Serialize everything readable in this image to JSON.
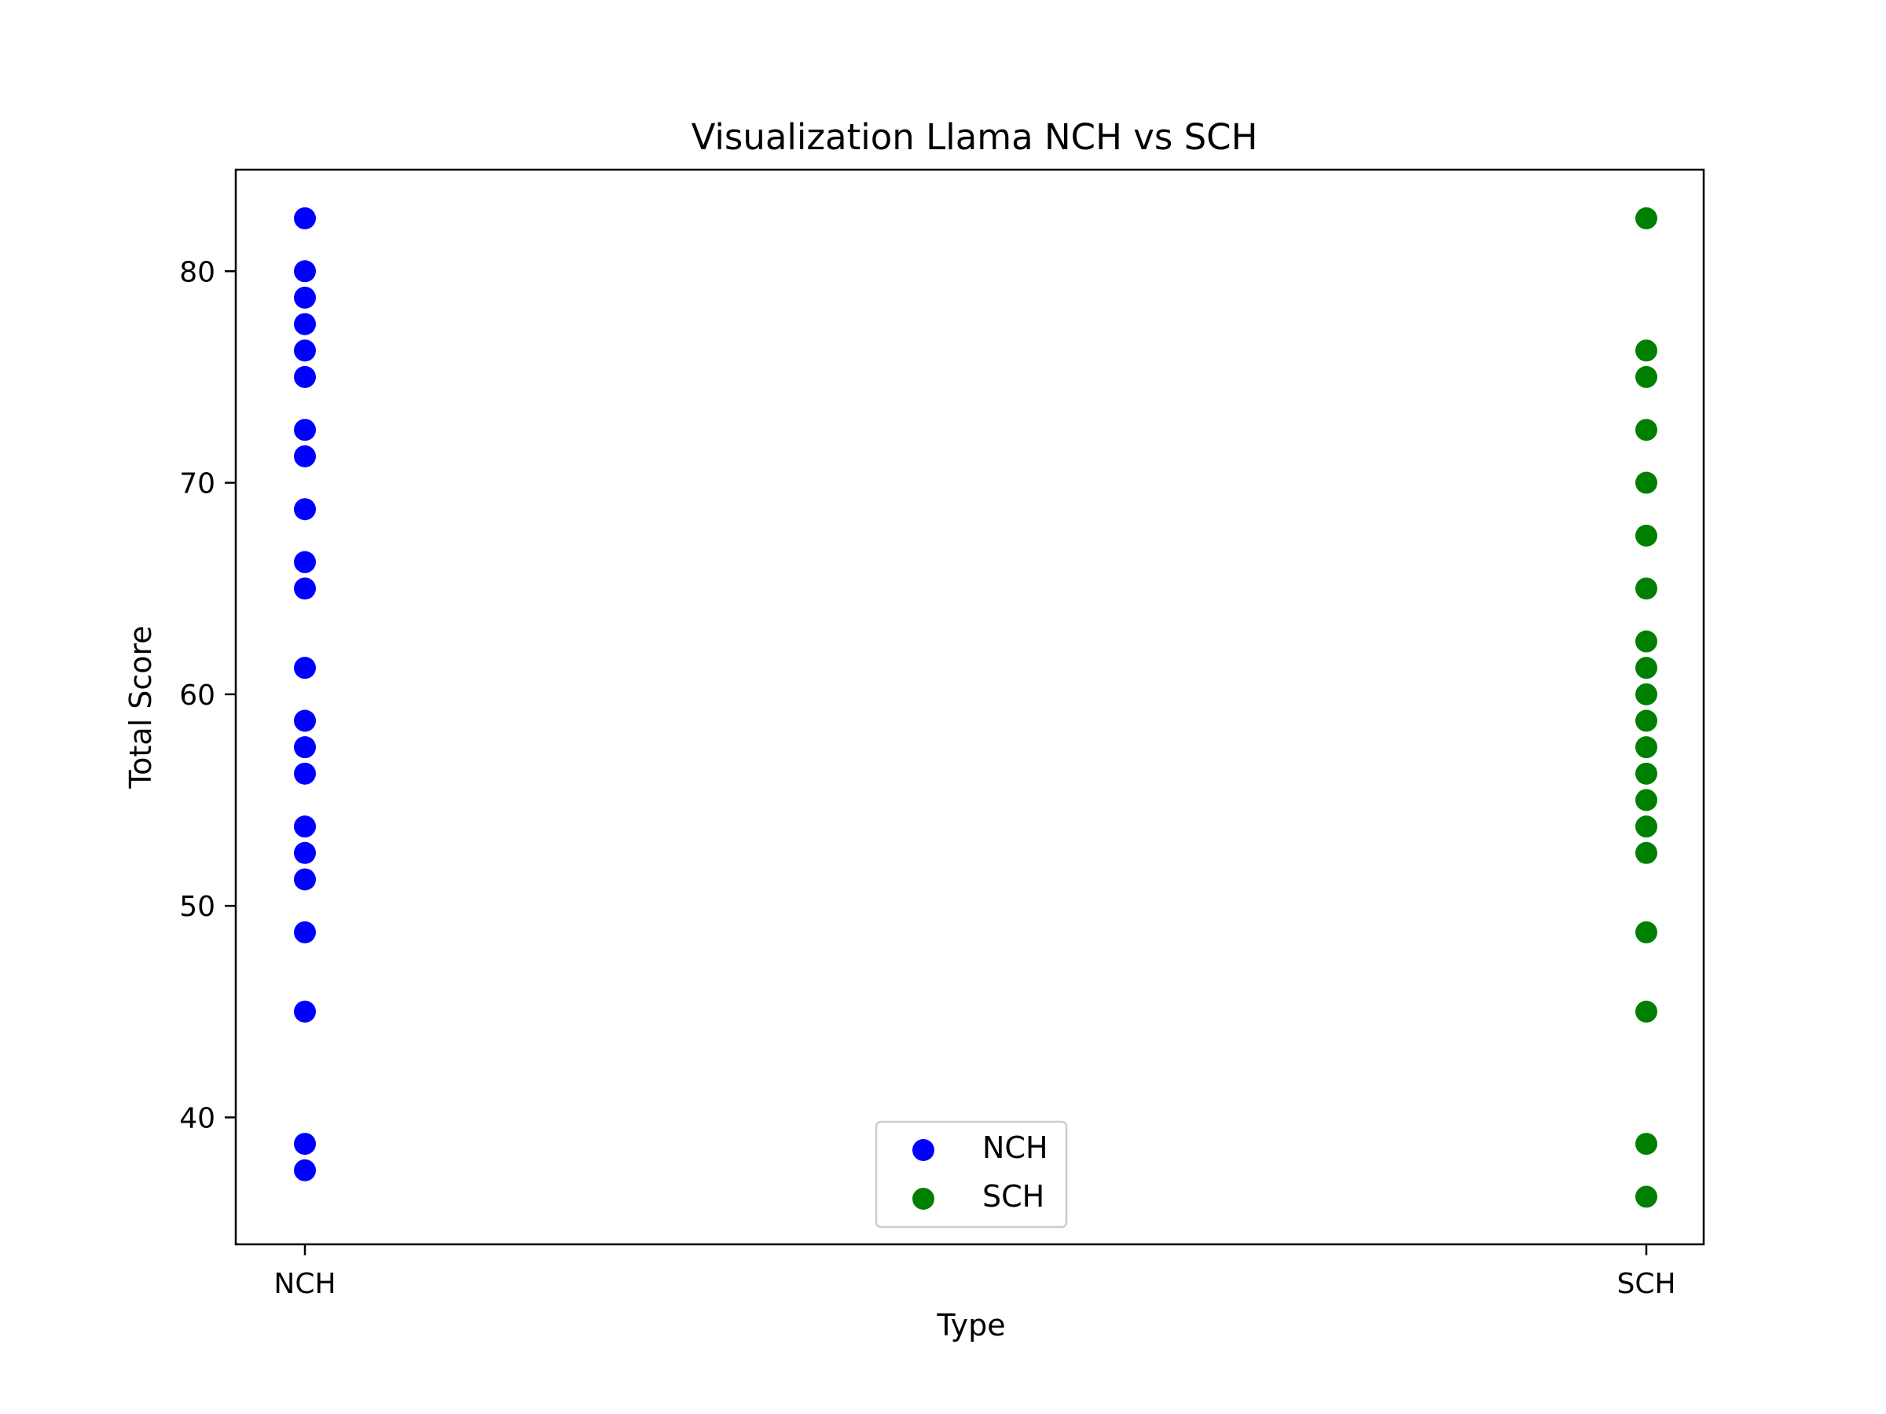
{
  "chart_data": {
    "type": "scatter",
    "title": "Visualization Llama NCH vs SCH",
    "xlabel": "Type",
    "ylabel": "Total Score",
    "categories": [
      "NCH",
      "SCH"
    ],
    "ylim": [
      34,
      84.8
    ],
    "yticks": [
      40,
      50,
      60,
      70,
      80
    ],
    "grid": false,
    "legend_position": "lower center",
    "series": [
      {
        "name": "NCH",
        "color": "#0000ff",
        "category": "NCH",
        "values": [
          82.5,
          80,
          78.75,
          77.5,
          76.25,
          75,
          72.5,
          71.25,
          68.75,
          66.25,
          65,
          61.25,
          58.75,
          57.5,
          56.25,
          53.75,
          52.5,
          51.25,
          48.75,
          45,
          38.75,
          37.5
        ]
      },
      {
        "name": "SCH",
        "color": "#008000",
        "category": "SCH",
        "values": [
          82.5,
          76.25,
          75,
          72.5,
          70,
          67.5,
          65,
          62.5,
          61.25,
          60,
          58.75,
          57.5,
          56.25,
          55,
          53.75,
          52.5,
          48.75,
          45,
          38.75,
          36.25
        ]
      }
    ]
  }
}
